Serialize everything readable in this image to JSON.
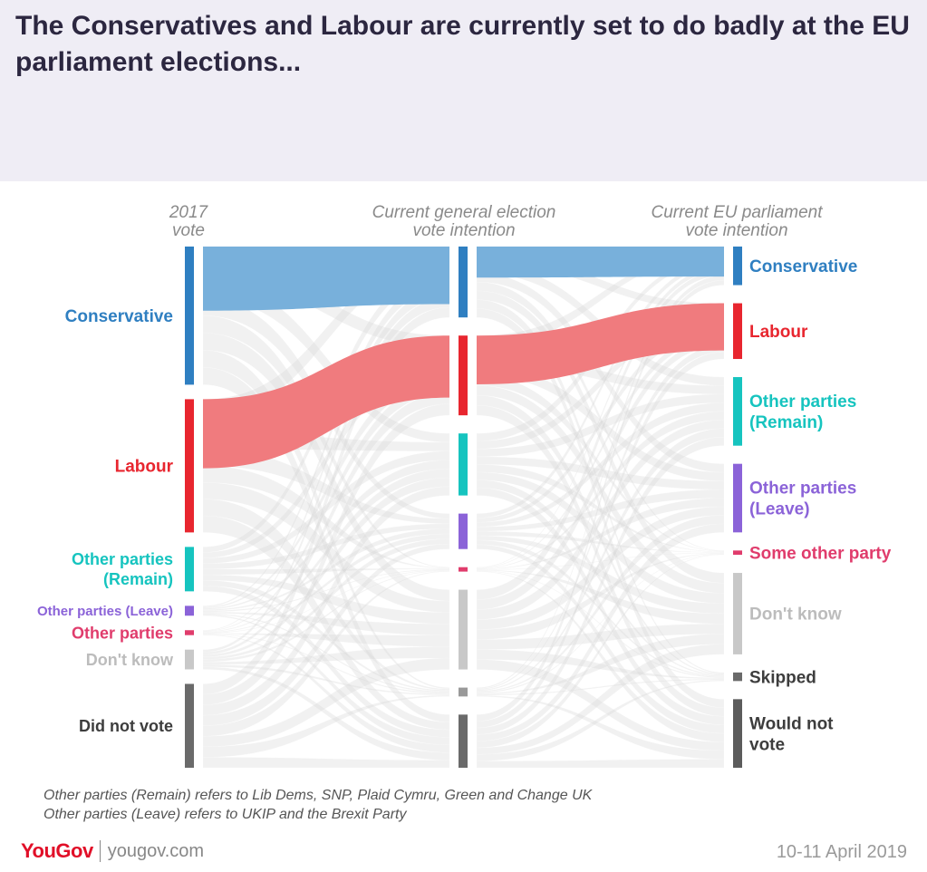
{
  "title": "The Conservatives and Labour are currently set to do badly at the EU parliament elections...",
  "chart_data": {
    "type": "sankey",
    "stages": [
      {
        "header": [
          "2017",
          "vote"
        ],
        "nodes": [
          {
            "label": [
              "Conservative"
            ],
            "value": 28,
            "color": "#2f7fc1"
          },
          {
            "label": [
              "Labour"
            ],
            "value": 27,
            "color": "#e8262f"
          },
          {
            "label": [
              "Other parties",
              "(Remain)"
            ],
            "value": 9,
            "color": "#16c4bf"
          },
          {
            "label": [
              "Other parties (Leave)"
            ],
            "value": 2,
            "color": "#8b63d8"
          },
          {
            "label": [
              "Other parties"
            ],
            "value": 1,
            "color": "#e03c6c"
          },
          {
            "label": [
              "Don't know"
            ],
            "value": 4,
            "color": "#c8c8c8"
          },
          {
            "label": [
              "Did not vote"
            ],
            "value": 17,
            "color": "#6a6a6a"
          }
        ]
      },
      {
        "header": [
          "Current general election",
          "vote intention"
        ],
        "nodes": [
          {
            "label": [],
            "value": 16,
            "color": "#2f7fc1"
          },
          {
            "label": [],
            "value": 18,
            "color": "#e8262f"
          },
          {
            "label": [],
            "value": 14,
            "color": "#16c4bf"
          },
          {
            "label": [],
            "value": 8,
            "color": "#8b63d8"
          },
          {
            "label": [],
            "value": 1,
            "color": "#e03c6c"
          },
          {
            "label": [],
            "value": 18,
            "color": "#c8c8c8"
          },
          {
            "label": [],
            "value": 2,
            "color": "#999999"
          },
          {
            "label": [],
            "value": 12,
            "color": "#6a6a6a"
          }
        ]
      },
      {
        "header": [
          "Current EU parliament",
          "vote intention"
        ],
        "nodes": [
          {
            "label": [
              "Conservative"
            ],
            "value": 9,
            "color": "#2f7fc1"
          },
          {
            "label": [
              "Labour"
            ],
            "value": 13,
            "color": "#e8262f"
          },
          {
            "label": [
              "Other parties",
              "(Remain)"
            ],
            "value": 16,
            "color": "#16c4bf"
          },
          {
            "label": [
              "Other parties",
              "(Leave)"
            ],
            "value": 16,
            "color": "#8b63d8"
          },
          {
            "label": [
              "Some other party"
            ],
            "value": 1,
            "color": "#e03c6c"
          },
          {
            "label": [
              "Don't know"
            ],
            "value": 19,
            "color": "#c8c8c8"
          },
          {
            "label": [
              "Skipped"
            ],
            "value": 2,
            "color": "#6a6a6a"
          },
          {
            "label": [
              "Would not",
              "vote"
            ],
            "value": 16,
            "color": "#5c5c5c"
          }
        ]
      }
    ],
    "highlighted_flows": [
      {
        "stage": 0,
        "from": "Conservative",
        "to": 0,
        "value": 13,
        "color": "#78b0db"
      },
      {
        "stage": 0,
        "from": "Labour",
        "to": 1,
        "value": 14,
        "color": "#f07b7e"
      },
      {
        "stage": 1,
        "from": 0,
        "to": "Conservative",
        "value": 7,
        "color": "#78b0db"
      },
      {
        "stage": 1,
        "from": 1,
        "to": "Labour",
        "value": 11,
        "color": "#f07b7e"
      }
    ]
  },
  "footnotes": [
    "Other parties (Remain) refers to Lib Dems, SNP, Plaid Cymru, Green and Change UK",
    "Other parties (Leave) refers to UKIP and the Brexit Party"
  ],
  "brand": {
    "logo": "YouGov",
    "site": "yougov.com"
  },
  "date": "10-11 April 2019",
  "colors": {
    "header_bg": "#efedf5",
    "grey_flow": "#e0e0e0",
    "grey_line": "#c9c9c9"
  }
}
